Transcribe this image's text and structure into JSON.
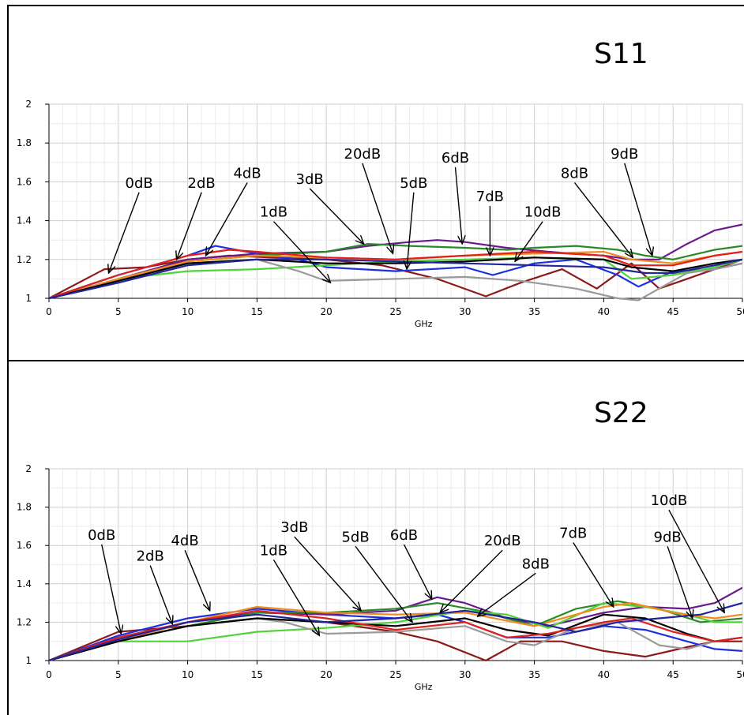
{
  "colors": {
    "black": "#000000",
    "dark_red": "#8b1a1a",
    "red": "#e0201c",
    "blue": "#1e2fe0",
    "purple": "#6a1a8a",
    "green": "#2a8a2a",
    "light_green": "#52d23a",
    "orange": "#f28a1c",
    "gray": "#9a9a9a",
    "navy": "#22249a",
    "teal": "#2aa0a0"
  },
  "chart_data": [
    {
      "type": "line",
      "title": "S11",
      "xlabel": "GHz",
      "ylabel": "",
      "xlim": [
        0,
        50
      ],
      "ylim": [
        1,
        2
      ],
      "xticks": [
        0,
        5,
        10,
        15,
        20,
        25,
        30,
        35,
        40,
        45,
        50
      ],
      "xtick_labels": [
        "0",
        "5",
        "10",
        "15",
        "20",
        "25",
        "30",
        "35",
        "40",
        "45",
        "50"
      ],
      "yticks": [
        1,
        1.2,
        1.4,
        1.6,
        1.8,
        2
      ],
      "ytick_labels": [
        "1",
        "1.2",
        "1.4",
        "1.6",
        "1.8",
        "2"
      ],
      "grid": true,
      "series": [
        {
          "color": "dark_red",
          "x": [
            0,
            4,
            7,
            10,
            13,
            16,
            20,
            24,
            28,
            31.5,
            34,
            37,
            39.5,
            42,
            44,
            46,
            48,
            50
          ],
          "y": [
            1,
            1.15,
            1.16,
            1.2,
            1.22,
            1.21,
            1.2,
            1.17,
            1.1,
            1.01,
            1.08,
            1.15,
            1.05,
            1.18,
            1.05,
            1.1,
            1.15,
            1.2
          ]
        },
        {
          "color": "blue",
          "x": [
            0,
            5,
            10,
            12,
            15,
            18,
            20,
            25,
            30,
            32,
            35,
            38,
            41,
            42.5,
            45,
            48,
            50
          ],
          "y": [
            1,
            1.12,
            1.22,
            1.27,
            1.23,
            1.2,
            1.16,
            1.14,
            1.16,
            1.12,
            1.18,
            1.2,
            1.12,
            1.06,
            1.14,
            1.15,
            1.18
          ]
        },
        {
          "color": "purple",
          "x": [
            0,
            5,
            10,
            15,
            20,
            23,
            26,
            28,
            30,
            33,
            36,
            40,
            42,
            44,
            46,
            48,
            50
          ],
          "y": [
            1,
            1.1,
            1.2,
            1.23,
            1.24,
            1.27,
            1.29,
            1.3,
            1.29,
            1.26,
            1.24,
            1.22,
            1.2,
            1.2,
            1.28,
            1.35,
            1.38
          ]
        },
        {
          "color": "green",
          "x": [
            0,
            5,
            10,
            15,
            20,
            23,
            26,
            30,
            33,
            35,
            38,
            41,
            43,
            45,
            48,
            50
          ],
          "y": [
            1,
            1.1,
            1.19,
            1.22,
            1.24,
            1.28,
            1.27,
            1.26,
            1.25,
            1.26,
            1.27,
            1.25,
            1.22,
            1.2,
            1.25,
            1.27
          ]
        },
        {
          "color": "light_green",
          "x": [
            0,
            5,
            10,
            15,
            20,
            25,
            30,
            35,
            40,
            42,
            45,
            48,
            50
          ],
          "y": [
            1,
            1.1,
            1.14,
            1.15,
            1.17,
            1.19,
            1.2,
            1.21,
            1.2,
            1.1,
            1.12,
            1.16,
            1.2
          ]
        },
        {
          "color": "orange",
          "x": [
            0,
            5,
            10,
            15,
            20,
            25,
            30,
            35,
            40,
            42,
            45,
            48,
            50
          ],
          "y": [
            1,
            1.1,
            1.19,
            1.22,
            1.21,
            1.2,
            1.22,
            1.23,
            1.24,
            1.2,
            1.18,
            1.22,
            1.24
          ]
        },
        {
          "color": "gray",
          "x": [
            0,
            5,
            10,
            15,
            18,
            20,
            25,
            30,
            34,
            38,
            41,
            42.5,
            44,
            46,
            48,
            50
          ],
          "y": [
            1,
            1.09,
            1.18,
            1.2,
            1.14,
            1.09,
            1.1,
            1.11,
            1.09,
            1.05,
            1.0,
            0.99,
            1.05,
            1.13,
            1.15,
            1.18
          ]
        },
        {
          "color": "black",
          "x": [
            0,
            5,
            10,
            15,
            20,
            25,
            30,
            35,
            40,
            42,
            45,
            48,
            50
          ],
          "y": [
            1,
            1.09,
            1.18,
            1.2,
            1.18,
            1.18,
            1.19,
            1.21,
            1.2,
            1.16,
            1.14,
            1.18,
            1.2
          ]
        },
        {
          "color": "red",
          "x": [
            0,
            5,
            10,
            13,
            15,
            20,
            25,
            30,
            35,
            40,
            42,
            45,
            48,
            50
          ],
          "y": [
            1,
            1.12,
            1.22,
            1.25,
            1.24,
            1.21,
            1.2,
            1.22,
            1.24,
            1.22,
            1.17,
            1.17,
            1.22,
            1.24
          ]
        },
        {
          "color": "navy",
          "x": [
            0,
            5,
            10,
            15,
            20,
            25,
            30,
            35,
            40,
            43,
            45,
            48,
            50
          ],
          "y": [
            1,
            1.08,
            1.17,
            1.2,
            1.2,
            1.19,
            1.18,
            1.17,
            1.16,
            1.13,
            1.13,
            1.17,
            1.2
          ]
        }
      ],
      "annotations": [
        {
          "text": "0dB",
          "label_x": 6.5,
          "label_y": 1.57,
          "arrow_x": 4.3,
          "arrow_y": 1.13
        },
        {
          "text": "2dB",
          "label_x": 11,
          "label_y": 1.57,
          "arrow_x": 9.2,
          "arrow_y": 1.2
        },
        {
          "text": "4dB",
          "label_x": 14.3,
          "label_y": 1.62,
          "arrow_x": 11.3,
          "arrow_y": 1.22
        },
        {
          "text": "1dB",
          "label_x": 16.2,
          "label_y": 1.42,
          "arrow_x": 20.3,
          "arrow_y": 1.08
        },
        {
          "text": "3dB",
          "label_x": 18.8,
          "label_y": 1.59,
          "arrow_x": 22.7,
          "arrow_y": 1.28
        },
        {
          "text": "20dB",
          "label_x": 22.6,
          "label_y": 1.72,
          "arrow_x": 24.8,
          "arrow_y": 1.23
        },
        {
          "text": "5dB",
          "label_x": 26.3,
          "label_y": 1.57,
          "arrow_x": 25.8,
          "arrow_y": 1.15
        },
        {
          "text": "6dB",
          "label_x": 29.3,
          "label_y": 1.7,
          "arrow_x": 29.8,
          "arrow_y": 1.28
        },
        {
          "text": "7dB",
          "label_x": 31.8,
          "label_y": 1.5,
          "arrow_x": 31.8,
          "arrow_y": 1.22
        },
        {
          "text": "10dB",
          "label_x": 35.6,
          "label_y": 1.42,
          "arrow_x": 33.6,
          "arrow_y": 1.19
        },
        {
          "text": "8dB",
          "label_x": 37.9,
          "label_y": 1.62,
          "arrow_x": 42.1,
          "arrow_y": 1.21
        },
        {
          "text": "9dB",
          "label_x": 41.5,
          "label_y": 1.72,
          "arrow_x": 43.5,
          "arrow_y": 1.22
        }
      ]
    },
    {
      "type": "line",
      "title": "S22",
      "xlabel": "GHz",
      "ylabel": "",
      "xlim": [
        0,
        50
      ],
      "ylim": [
        1,
        2
      ],
      "xticks": [
        0,
        5,
        10,
        15,
        20,
        25,
        30,
        35,
        40,
        45,
        50
      ],
      "xtick_labels": [
        "0",
        "5",
        "10",
        "15",
        "20",
        "25",
        "30",
        "35",
        "40",
        "45",
        "50"
      ],
      "yticks": [
        1,
        1.2,
        1.4,
        1.6,
        1.8,
        2
      ],
      "ytick_labels": [
        "1",
        "1.2",
        "1.4",
        "1.6",
        "1.8",
        "2"
      ],
      "grid": true,
      "series": [
        {
          "color": "dark_red",
          "x": [
            0,
            5,
            10,
            15,
            20,
            25,
            28,
            31.5,
            34,
            37,
            40,
            43,
            46,
            48,
            50
          ],
          "y": [
            1,
            1.15,
            1.18,
            1.22,
            1.2,
            1.15,
            1.1,
            1.0,
            1.1,
            1.1,
            1.05,
            1.02,
            1.07,
            1.1,
            1.1
          ]
        },
        {
          "color": "blue",
          "x": [
            0,
            5,
            10,
            15,
            20,
            25,
            28,
            30,
            33,
            36,
            40,
            43,
            46,
            48,
            50
          ],
          "y": [
            1,
            1.13,
            1.22,
            1.27,
            1.24,
            1.22,
            1.24,
            1.2,
            1.12,
            1.12,
            1.18,
            1.16,
            1.1,
            1.06,
            1.05
          ]
        },
        {
          "color": "purple",
          "x": [
            0,
            5,
            10,
            15,
            20,
            25,
            28,
            30,
            33,
            36,
            40,
            43,
            46,
            48,
            50
          ],
          "y": [
            1,
            1.12,
            1.2,
            1.25,
            1.24,
            1.26,
            1.33,
            1.3,
            1.22,
            1.18,
            1.25,
            1.28,
            1.27,
            1.3,
            1.38
          ]
        },
        {
          "color": "green",
          "x": [
            0,
            5,
            10,
            15,
            20,
            25,
            28,
            31,
            35,
            38,
            41,
            44,
            47,
            50
          ],
          "y": [
            1,
            1.1,
            1.18,
            1.25,
            1.25,
            1.27,
            1.3,
            1.26,
            1.18,
            1.27,
            1.31,
            1.27,
            1.2,
            1.22
          ]
        },
        {
          "color": "light_green",
          "x": [
            0,
            5,
            10,
            15,
            20,
            25,
            30,
            33,
            36,
            40,
            43,
            46,
            48,
            50
          ],
          "y": [
            1,
            1.1,
            1.1,
            1.15,
            1.17,
            1.2,
            1.26,
            1.24,
            1.17,
            1.3,
            1.28,
            1.24,
            1.2,
            1.2
          ]
        },
        {
          "color": "orange",
          "x": [
            0,
            5,
            10,
            15,
            20,
            25,
            30,
            35,
            40,
            42,
            45,
            48,
            50
          ],
          "y": [
            1,
            1.1,
            1.2,
            1.28,
            1.25,
            1.24,
            1.25,
            1.18,
            1.28,
            1.3,
            1.25,
            1.22,
            1.24
          ]
        },
        {
          "color": "gray",
          "x": [
            0,
            5,
            10,
            15,
            17,
            20,
            25,
            30,
            33,
            35,
            38,
            41,
            44,
            46,
            48,
            50
          ],
          "y": [
            1,
            1.1,
            1.18,
            1.22,
            1.2,
            1.14,
            1.15,
            1.18,
            1.1,
            1.08,
            1.17,
            1.2,
            1.08,
            1.06,
            1.1,
            1.12
          ]
        },
        {
          "color": "black",
          "x": [
            0,
            5,
            10,
            15,
            20,
            25,
            30,
            33,
            36,
            40,
            43,
            46,
            48,
            50
          ],
          "y": [
            1,
            1.1,
            1.18,
            1.22,
            1.2,
            1.18,
            1.22,
            1.16,
            1.13,
            1.24,
            1.22,
            1.14,
            1.1,
            1.12
          ]
        },
        {
          "color": "red",
          "x": [
            0,
            5,
            10,
            15,
            20,
            25,
            30,
            33,
            36,
            40,
            42,
            45,
            48,
            50
          ],
          "y": [
            1,
            1.12,
            1.2,
            1.26,
            1.22,
            1.16,
            1.2,
            1.12,
            1.14,
            1.2,
            1.22,
            1.15,
            1.1,
            1.12
          ]
        },
        {
          "color": "navy",
          "x": [
            0,
            5,
            10,
            15,
            20,
            25,
            30,
            35,
            38,
            41,
            44,
            47,
            50
          ],
          "y": [
            1,
            1.11,
            1.2,
            1.24,
            1.2,
            1.22,
            1.26,
            1.2,
            1.15,
            1.2,
            1.22,
            1.24,
            1.3
          ]
        }
      ],
      "annotations": [
        {
          "text": "0dB",
          "label_x": 3.8,
          "label_y": 1.63,
          "arrow_x": 5.2,
          "arrow_y": 1.14
        },
        {
          "text": "2dB",
          "label_x": 7.3,
          "label_y": 1.52,
          "arrow_x": 8.9,
          "arrow_y": 1.19
        },
        {
          "text": "4dB",
          "label_x": 9.8,
          "label_y": 1.6,
          "arrow_x": 11.6,
          "arrow_y": 1.26
        },
        {
          "text": "1dB",
          "label_x": 16.2,
          "label_y": 1.55,
          "arrow_x": 19.5,
          "arrow_y": 1.13
        },
        {
          "text": "3dB",
          "label_x": 17.7,
          "label_y": 1.67,
          "arrow_x": 22.5,
          "arrow_y": 1.26
        },
        {
          "text": "5dB",
          "label_x": 22.1,
          "label_y": 1.62,
          "arrow_x": 26.2,
          "arrow_y": 1.2
        },
        {
          "text": "6dB",
          "label_x": 25.6,
          "label_y": 1.63,
          "arrow_x": 27.6,
          "arrow_y": 1.32
        },
        {
          "text": "20dB",
          "label_x": 32.7,
          "label_y": 1.6,
          "arrow_x": 28.2,
          "arrow_y": 1.25
        },
        {
          "text": "8dB",
          "label_x": 35.1,
          "label_y": 1.48,
          "arrow_x": 30.9,
          "arrow_y": 1.23
        },
        {
          "text": "7dB",
          "label_x": 37.8,
          "label_y": 1.64,
          "arrow_x": 40.7,
          "arrow_y": 1.28
        },
        {
          "text": "9dB",
          "label_x": 44.6,
          "label_y": 1.62,
          "arrow_x": 46.4,
          "arrow_y": 1.22
        },
        {
          "text": "10dB",
          "label_x": 44.7,
          "label_y": 1.81,
          "arrow_x": 48.7,
          "arrow_y": 1.25
        }
      ]
    }
  ]
}
